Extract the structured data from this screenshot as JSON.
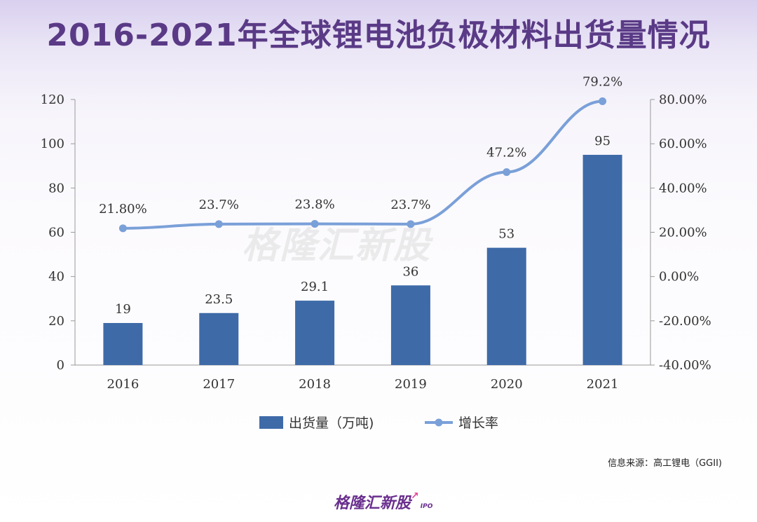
{
  "title": "2016-2021年全球锂电池负极材料出货量情况",
  "source": "信息来源：高工锂电（GGII)",
  "watermark": "格隆汇新股",
  "logo": {
    "text": "格隆汇新股",
    "sub": "IPO"
  },
  "colors": {
    "title": "#5a3a86",
    "bar": "#3e6aa8",
    "line": "#7aa0d8",
    "logo": "#6a2f8e"
  },
  "chart_data": {
    "type": "bar",
    "categories": [
      "2016",
      "2017",
      "2018",
      "2019",
      "2020",
      "2021"
    ],
    "series": [
      {
        "name": "出货量（万吨)",
        "type": "bar",
        "axis": "left",
        "values": [
          19,
          23.5,
          29.1,
          36,
          53,
          95
        ],
        "labels": [
          "19",
          "23.5",
          "29.1",
          "36",
          "53",
          "95"
        ]
      },
      {
        "name": "增长率",
        "type": "line",
        "axis": "right",
        "values": [
          21.8,
          23.7,
          23.8,
          23.7,
          47.2,
          79.2
        ],
        "labels": [
          "21.80%",
          "23.7%",
          "23.8%",
          "23.7%",
          "47.2%",
          "79.2%"
        ]
      }
    ],
    "ylim_left": [
      0,
      120
    ],
    "yticks_left": [
      "0",
      "20",
      "40",
      "60",
      "80",
      "100",
      "120"
    ],
    "ylim_right": [
      -40,
      80
    ],
    "yticks_right": [
      "-40.00%",
      "-20.00%",
      "0.00%",
      "20.00%",
      "40.00%",
      "60.00%",
      "80.00%"
    ],
    "legend_position": "bottom"
  }
}
